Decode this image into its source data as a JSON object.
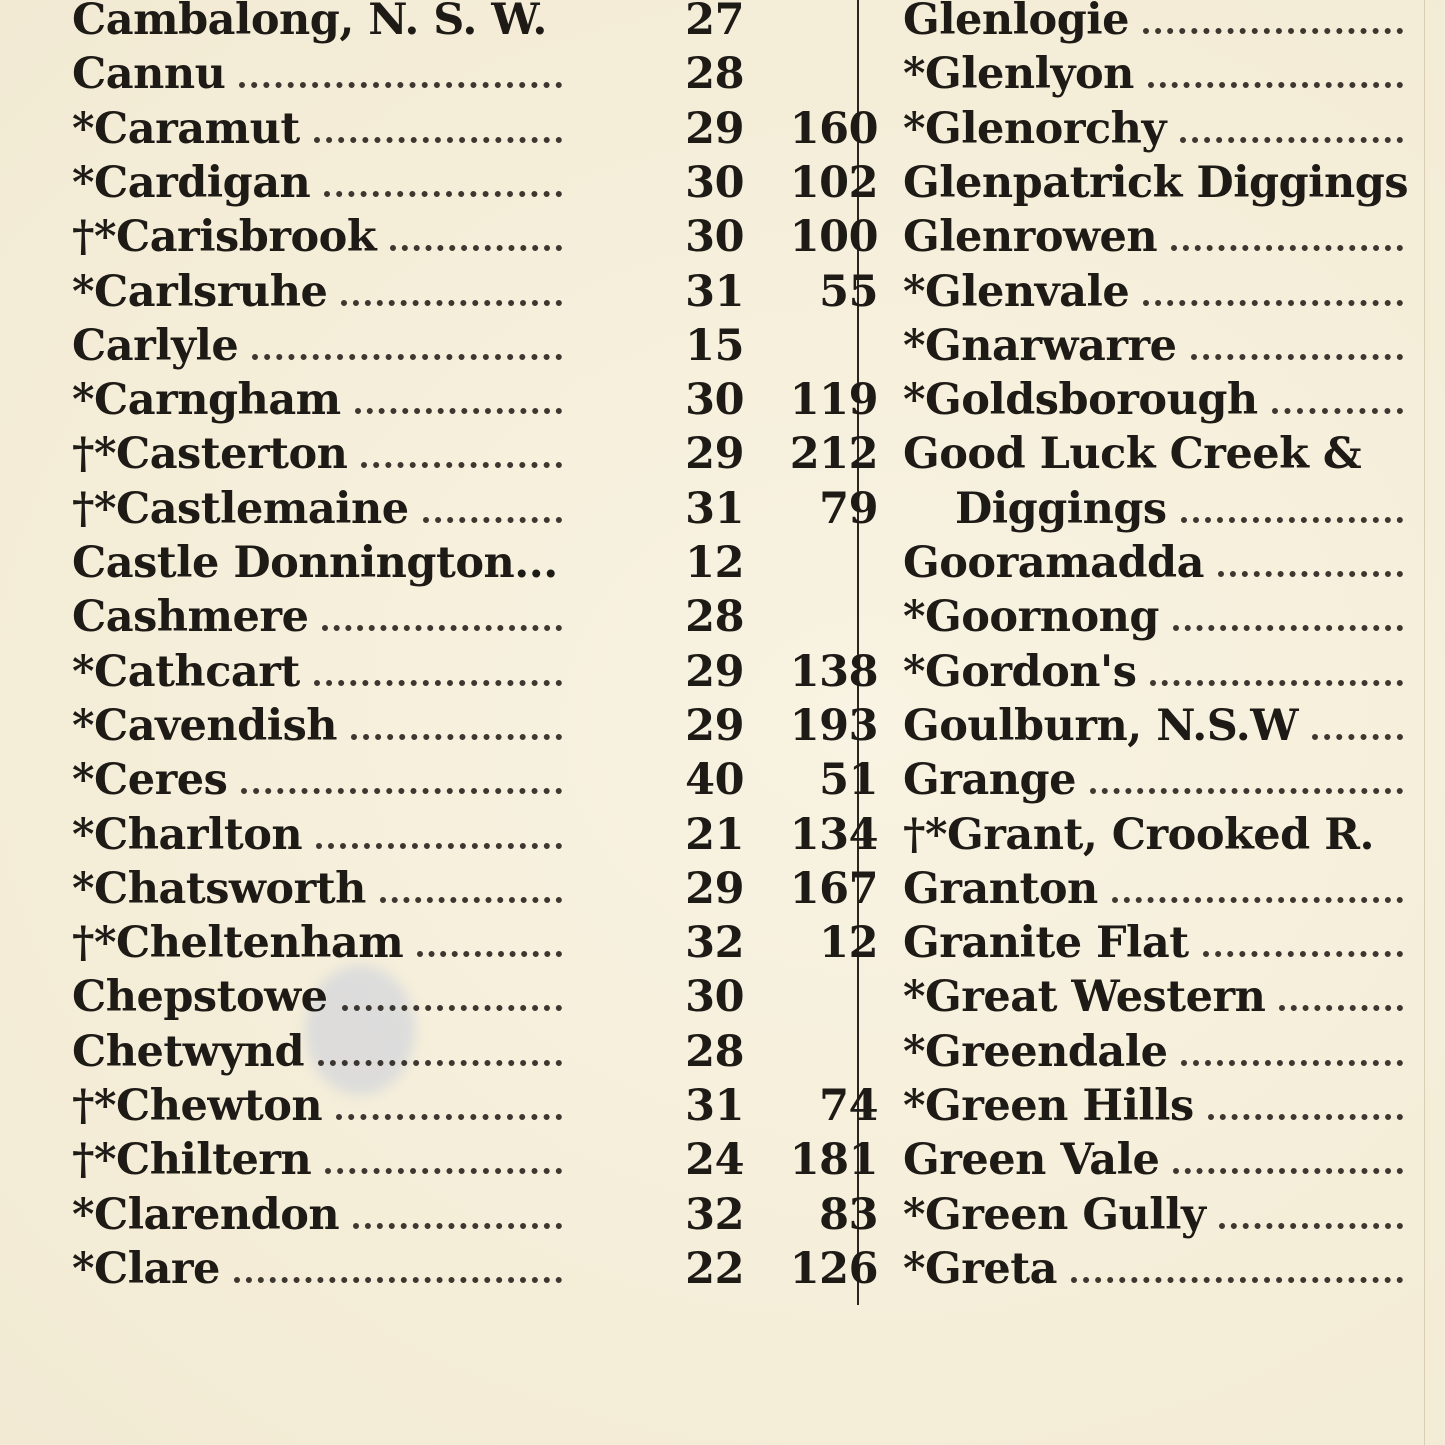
{
  "left_column": [
    {
      "name": "Cambalong, N. S. W.",
      "c1": "27",
      "c2": "",
      "dots": false
    },
    {
      "name": "Cannu",
      "c1": "28",
      "c2": "",
      "dots": true
    },
    {
      "name": "*Caramut",
      "c1": "29",
      "c2": "160",
      "dots": true
    },
    {
      "name": "*Cardigan",
      "c1": "30",
      "c2": "102",
      "dots": true
    },
    {
      "name": "†*Carisbrook",
      "c1": "30",
      "c2": "100",
      "dots": true
    },
    {
      "name": "*Carlsruhe",
      "c1": "31",
      "c2": "55",
      "dots": true
    },
    {
      "name": "Carlyle",
      "c1": "15",
      "c2": "",
      "dots": true
    },
    {
      "name": "*Carngham",
      "c1": "30",
      "c2": "119",
      "dots": true
    },
    {
      "name": "†*Casterton",
      "c1": "29",
      "c2": "212",
      "dots": true
    },
    {
      "name": "†*Castlemaine",
      "c1": "31",
      "c2": "79",
      "dots": true
    },
    {
      "name": "Castle Donnington...",
      "c1": "12",
      "c2": "",
      "dots": false
    },
    {
      "name": "Cashmere",
      "c1": "28",
      "c2": "",
      "dots": true
    },
    {
      "name": "*Cathcart",
      "c1": "29",
      "c2": "138",
      "dots": true
    },
    {
      "name": "*Cavendish",
      "c1": "29",
      "c2": "193",
      "dots": true
    },
    {
      "name": "*Ceres",
      "c1": "40",
      "c2": "51",
      "dots": true
    },
    {
      "name": "*Charlton",
      "c1": "21",
      "c2": "134",
      "dots": true
    },
    {
      "name": "*Chatsworth",
      "c1": "29",
      "c2": "167",
      "dots": true
    },
    {
      "name": "†*Cheltenham",
      "c1": "32",
      "c2": "12",
      "dots": true
    },
    {
      "name": "Chepstowe",
      "c1": "30",
      "c2": "",
      "dots": true
    },
    {
      "name": "Chetwynd",
      "c1": "28",
      "c2": "",
      "dots": true
    },
    {
      "name": "†*Chewton",
      "c1": "31",
      "c2": "74",
      "dots": true
    },
    {
      "name": "†*Chiltern",
      "c1": "24",
      "c2": "181",
      "dots": true
    },
    {
      "name": "*Clarendon",
      "c1": "32",
      "c2": "83",
      "dots": true
    },
    {
      "name": "*Clare",
      "c1": "22",
      "c2": "126",
      "dots": true
    }
  ],
  "right_column": [
    {
      "name": "Glenlogie",
      "dots": true
    },
    {
      "name": "*Glenlyon",
      "dots": true
    },
    {
      "name": "*Glenorchy",
      "dots": true
    },
    {
      "name": "Glenpatrick Diggings",
      "dots": false
    },
    {
      "name": "Glenrowen",
      "dots": true
    },
    {
      "name": "*Glenvale",
      "dots": true
    },
    {
      "name": "*Gnarwarre",
      "dots": true
    },
    {
      "name": "*Goldsborough",
      "dots": true
    },
    {
      "name": "Good Luck Creek  &",
      "dots": false
    },
    {
      "name": "Diggings",
      "dots": true,
      "continuation": true
    },
    {
      "name": "Gooramadda",
      "dots": true
    },
    {
      "name": "*Goornong",
      "dots": true
    },
    {
      "name": "*Gordon's",
      "dots": true
    },
    {
      "name": "Goulburn, N.S.W",
      "dots": true
    },
    {
      "name": "Grange",
      "dots": true
    },
    {
      "name": "†*Grant, Crooked  R.",
      "dots": false
    },
    {
      "name": "Granton",
      "dots": true
    },
    {
      "name": "Granite Flat",
      "dots": true
    },
    {
      "name": "*Great Western",
      "dots": true
    },
    {
      "name": "*Greendale",
      "dots": true
    },
    {
      "name": "*Green Hills",
      "dots": true
    },
    {
      "name": "Green Vale",
      "dots": true
    },
    {
      "name": "*Green Gully",
      "dots": true
    },
    {
      "name": "*Greta",
      "dots": true
    }
  ]
}
